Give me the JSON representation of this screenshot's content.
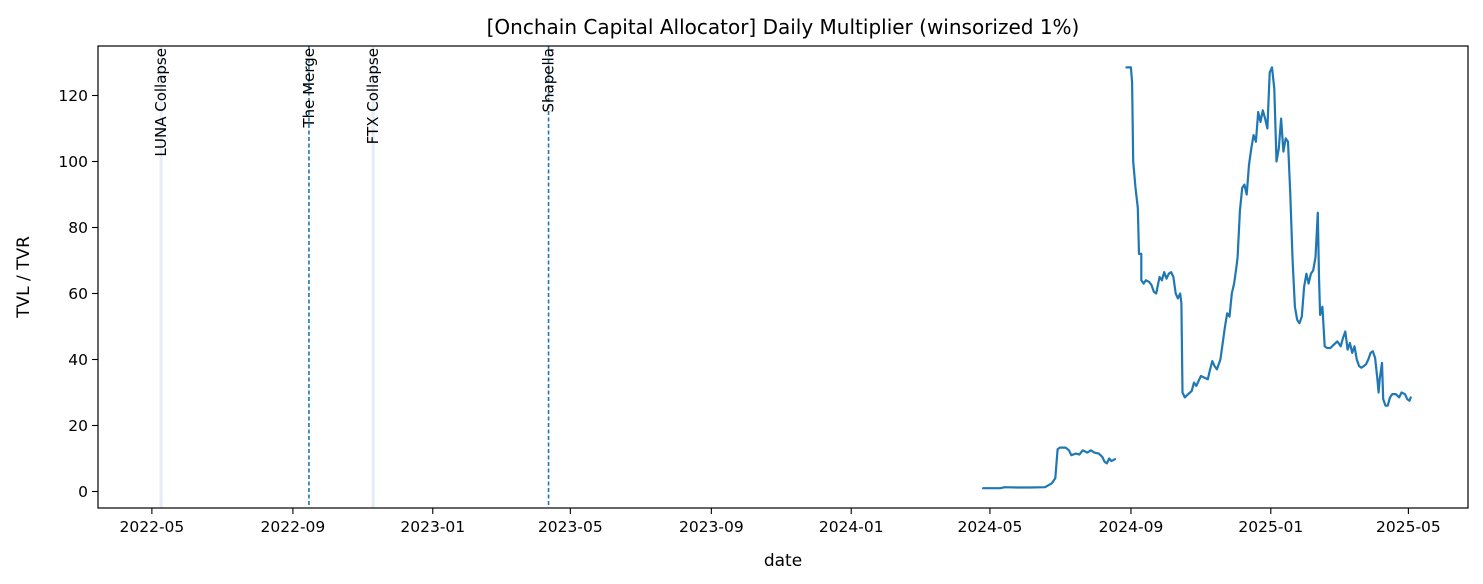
{
  "chart_data": {
    "type": "line",
    "title": "[Onchain Capital Allocator] Daily Multiplier (winsorized 1%)",
    "xlabel": "date",
    "ylabel": "TVL / TVR",
    "x_ticks": [
      "2022-05",
      "2022-09",
      "2023-01",
      "2023-05",
      "2023-09",
      "2024-01",
      "2024-05",
      "2024-09",
      "2025-01",
      "2025-05"
    ],
    "y_ticks": [
      0,
      20,
      40,
      60,
      80,
      100,
      120
    ],
    "xlim": [
      "2022-03-15",
      "2025-06-22"
    ],
    "ylim": [
      -5,
      135
    ],
    "grid": false,
    "line_color": "#1f77b4",
    "events": [
      {
        "label": "LUNA Collapse",
        "date": "2022-05-09",
        "style": "band"
      },
      {
        "label": "The Merge",
        "date": "2022-09-15",
        "style": "dashed"
      },
      {
        "label": "FTX Collapse",
        "date": "2022-11-10",
        "style": "band"
      },
      {
        "label": "Shapella",
        "date": "2023-04-12",
        "style": "dashed"
      }
    ],
    "series": [
      {
        "segments": [
          [
            [
              "2024-04-25",
              1.0
            ],
            [
              "2024-05-10",
              1.0
            ],
            [
              "2024-05-14",
              1.3
            ],
            [
              "2024-05-25",
              1.2
            ],
            [
              "2024-06-05",
              1.2
            ],
            [
              "2024-06-18",
              1.3
            ],
            [
              "2024-06-24",
              2.5
            ],
            [
              "2024-06-27",
              4.0
            ],
            [
              "2024-06-29",
              12.8
            ],
            [
              "2024-07-01",
              13.3
            ],
            [
              "2024-07-06",
              13.3
            ],
            [
              "2024-07-09",
              12.5
            ],
            [
              "2024-07-11",
              11.0
            ],
            [
              "2024-07-15",
              11.5
            ],
            [
              "2024-07-18",
              11.2
            ],
            [
              "2024-07-21",
              12.5
            ],
            [
              "2024-07-25",
              11.8
            ],
            [
              "2024-07-28",
              12.5
            ],
            [
              "2024-07-31",
              11.8
            ],
            [
              "2024-08-04",
              11.5
            ],
            [
              "2024-08-07",
              10.5
            ],
            [
              "2024-08-09",
              9.0
            ],
            [
              "2024-08-11",
              8.5
            ],
            [
              "2024-08-13",
              10.0
            ],
            [
              "2024-08-15",
              9.2
            ],
            [
              "2024-08-18",
              9.8
            ]
          ],
          [
            [
              "2024-08-28",
              128.5
            ],
            [
              "2024-09-01",
              128.5
            ],
            [
              "2024-09-02",
              124
            ],
            [
              "2024-09-03",
              100
            ],
            [
              "2024-09-05",
              92
            ],
            [
              "2024-09-07",
              86
            ],
            [
              "2024-09-08",
              72
            ],
            [
              "2024-09-10",
              72
            ],
            [
              "2024-09-10",
              64
            ],
            [
              "2024-09-12",
              63
            ],
            [
              "2024-09-14",
              64
            ],
            [
              "2024-09-17",
              63.5
            ],
            [
              "2024-09-19",
              62.5
            ],
            [
              "2024-09-21",
              60.5
            ],
            [
              "2024-09-23",
              60
            ],
            [
              "2024-09-25",
              63.5
            ],
            [
              "2024-09-26",
              65
            ],
            [
              "2024-09-28",
              64
            ],
            [
              "2024-09-30",
              66.5
            ],
            [
              "2024-10-02",
              64.5
            ],
            [
              "2024-10-04",
              66
            ],
            [
              "2024-10-06",
              66.5
            ],
            [
              "2024-10-08",
              65
            ],
            [
              "2024-10-10",
              60
            ],
            [
              "2024-10-12",
              58.5
            ],
            [
              "2024-10-14",
              60
            ],
            [
              "2024-10-15",
              57
            ],
            [
              "2024-10-16",
              30
            ],
            [
              "2024-10-18",
              28.5
            ],
            [
              "2024-10-21",
              29.5
            ],
            [
              "2024-10-24",
              30.5
            ],
            [
              "2024-10-26",
              33
            ],
            [
              "2024-10-28",
              32
            ],
            [
              "2024-10-30",
              33.5
            ],
            [
              "2024-11-01",
              35
            ],
            [
              "2024-11-04",
              34.5
            ],
            [
              "2024-11-07",
              34
            ],
            [
              "2024-11-09",
              37
            ],
            [
              "2024-11-11",
              39.5
            ],
            [
              "2024-11-13",
              38
            ],
            [
              "2024-11-15",
              37
            ],
            [
              "2024-11-18",
              40
            ],
            [
              "2024-11-20",
              45
            ],
            [
              "2024-11-22",
              50
            ],
            [
              "2024-11-24",
              54
            ],
            [
              "2024-11-26",
              53
            ],
            [
              "2024-11-28",
              60
            ],
            [
              "2024-11-30",
              63
            ],
            [
              "2024-12-02",
              68
            ],
            [
              "2024-12-03",
              71
            ],
            [
              "2024-12-05",
              85
            ],
            [
              "2024-12-07",
              92
            ],
            [
              "2024-12-09",
              93
            ],
            [
              "2024-12-11",
              90
            ],
            [
              "2024-12-13",
              99
            ],
            [
              "2024-12-15",
              104
            ],
            [
              "2024-12-17",
              108
            ],
            [
              "2024-12-19",
              106
            ],
            [
              "2024-12-21",
              115
            ],
            [
              "2024-12-23",
              112
            ],
            [
              "2024-12-25",
              115.5
            ],
            [
              "2024-12-27",
              113
            ],
            [
              "2024-12-29",
              110
            ],
            [
              "2024-12-31",
              127
            ],
            [
              "2025-01-02",
              128.5
            ],
            [
              "2025-01-04",
              122
            ],
            [
              "2025-01-06",
              100
            ],
            [
              "2025-01-08",
              104
            ],
            [
              "2025-01-10",
              113
            ],
            [
              "2025-01-12",
              103
            ],
            [
              "2025-01-14",
              107
            ],
            [
              "2025-01-16",
              106
            ],
            [
              "2025-01-18",
              90
            ],
            [
              "2025-01-20",
              70
            ],
            [
              "2025-01-22",
              56
            ],
            [
              "2025-01-24",
              52
            ],
            [
              "2025-01-26",
              51
            ],
            [
              "2025-01-28",
              53
            ],
            [
              "2025-01-30",
              62
            ],
            [
              "2025-02-01",
              66
            ],
            [
              "2025-02-03",
              63
            ],
            [
              "2025-02-05",
              66
            ],
            [
              "2025-02-07",
              67
            ],
            [
              "2025-02-09",
              71
            ],
            [
              "2025-02-11",
              84.5
            ],
            [
              "2025-02-12",
              65
            ],
            [
              "2025-02-13",
              53.5
            ],
            [
              "2025-02-15",
              56
            ],
            [
              "2025-02-17",
              44
            ],
            [
              "2025-02-19",
              43.5
            ],
            [
              "2025-02-22",
              43.5
            ],
            [
              "2025-02-25",
              44.5
            ],
            [
              "2025-02-28",
              45.5
            ],
            [
              "2025-03-03",
              44
            ],
            [
              "2025-03-05",
              46.5
            ],
            [
              "2025-03-07",
              48.5
            ],
            [
              "2025-03-09",
              43
            ],
            [
              "2025-03-11",
              45
            ],
            [
              "2025-03-13",
              42
            ],
            [
              "2025-03-15",
              44
            ],
            [
              "2025-03-17",
              40
            ],
            [
              "2025-03-19",
              38
            ],
            [
              "2025-03-21",
              37.5
            ],
            [
              "2025-03-23",
              38
            ],
            [
              "2025-03-25",
              38.5
            ],
            [
              "2025-03-27",
              40
            ],
            [
              "2025-03-29",
              42
            ],
            [
              "2025-03-31",
              42.5
            ],
            [
              "2025-04-02",
              40.5
            ],
            [
              "2025-04-04",
              34
            ],
            [
              "2025-04-05",
              30
            ],
            [
              "2025-04-06",
              34
            ],
            [
              "2025-04-08",
              39
            ],
            [
              "2025-04-09",
              28
            ],
            [
              "2025-04-11",
              26
            ],
            [
              "2025-04-13",
              26
            ],
            [
              "2025-04-15",
              28.5
            ],
            [
              "2025-04-17",
              29.5
            ],
            [
              "2025-04-20",
              29.5
            ],
            [
              "2025-04-23",
              28.5
            ],
            [
              "2025-04-25",
              30
            ],
            [
              "2025-04-28",
              29.5
            ],
            [
              "2025-04-30",
              28
            ],
            [
              "2025-05-02",
              27.5
            ],
            [
              "2025-05-03",
              28.5
            ]
          ]
        ]
      }
    ]
  }
}
